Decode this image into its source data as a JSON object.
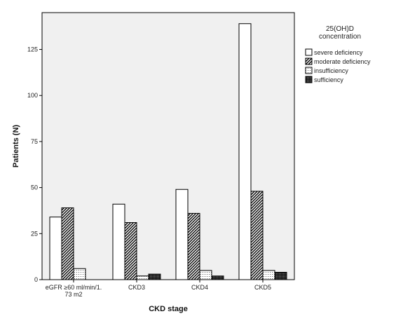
{
  "chart_data": {
    "type": "bar",
    "xlabel": "CKD stage",
    "ylabel": "Patients (N)",
    "ylim": [
      0,
      145
    ],
    "yticks": [
      0,
      25,
      50,
      75,
      100,
      125
    ],
    "categories": [
      [
        "eGFR ≥60 ml/min/1.",
        "73 m2"
      ],
      [
        "CKD3"
      ],
      [
        "CKD4"
      ],
      [
        "CKD5"
      ]
    ],
    "legend": {
      "title": [
        "25(OH)D",
        "concentration"
      ],
      "placement": "right"
    },
    "series": [
      {
        "name": "severe deficiency",
        "pattern": "white",
        "values": [
          34,
          41,
          49,
          139
        ]
      },
      {
        "name": "moderate deficiency",
        "pattern": "diagonal",
        "values": [
          39,
          31,
          36,
          48
        ]
      },
      {
        "name": "insufficiency",
        "pattern": "dots",
        "values": [
          6,
          2,
          5,
          5
        ]
      },
      {
        "name": "sufficiency",
        "pattern": "dense",
        "values": [
          0,
          3,
          2,
          4
        ]
      }
    ],
    "plot_background": "#f0f0f0"
  }
}
